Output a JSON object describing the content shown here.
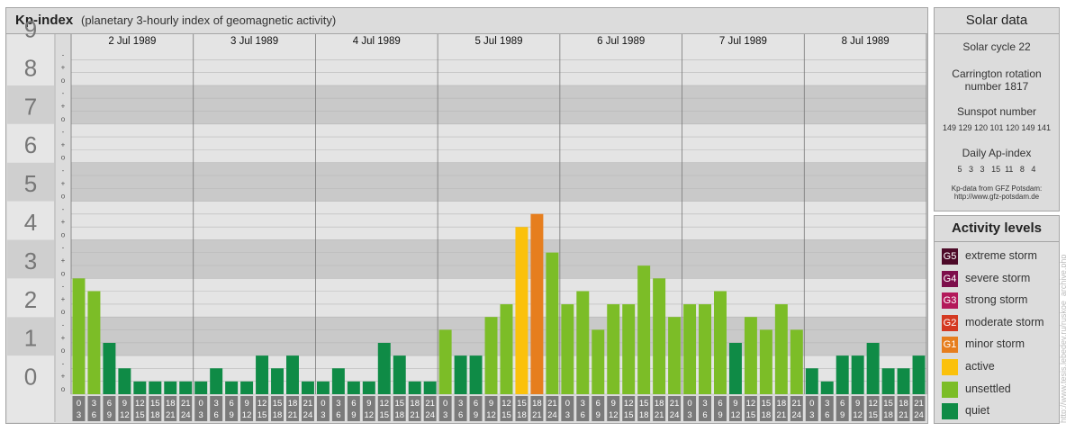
{
  "header": {
    "title": "Kp-index",
    "subtitle": "(planetary 3-hourly index of geomagnetic activity)"
  },
  "chart_data": {
    "type": "bar",
    "title": "Kp-index",
    "subtitle": "(planetary 3-hourly index of geomagnetic activity)",
    "ylim": [
      0,
      9
    ],
    "y_ticks": [
      "0",
      "1",
      "2",
      "3",
      "4",
      "5",
      "6",
      "7",
      "8",
      "9"
    ],
    "y_minor_ticks": [
      "o",
      "+",
      "-"
    ],
    "days": [
      "2 Jul 1989",
      "3 Jul 1989",
      "4 Jul 1989",
      "5 Jul 1989",
      "6 Jul 1989",
      "7 Jul 1989",
      "8 Jul 1989"
    ],
    "hour_start_labels": [
      "0",
      "3",
      "6",
      "9",
      "12",
      "15",
      "18",
      "21"
    ],
    "hour_end_labels": [
      "3",
      "6",
      "9",
      "12",
      "15",
      "18",
      "21",
      "24"
    ],
    "values": [
      [
        3.0,
        2.67,
        1.33,
        0.67,
        0.33,
        0.33,
        0.33,
        0.33
      ],
      [
        0.33,
        0.67,
        0.33,
        0.33,
        1.0,
        0.67,
        1.0,
        0.33
      ],
      [
        0.33,
        0.67,
        0.33,
        0.33,
        1.33,
        1.0,
        0.33,
        0.33
      ],
      [
        1.67,
        1.0,
        1.0,
        2.0,
        2.33,
        4.33,
        4.67,
        3.67
      ],
      [
        2.33,
        2.67,
        1.67,
        2.33,
        2.33,
        3.33,
        3.0,
        2.0
      ],
      [
        2.33,
        2.33,
        2.67,
        1.33,
        2.0,
        1.67,
        2.33,
        1.67
      ],
      [
        0.67,
        0.33,
        1.0,
        1.0,
        1.33,
        0.67,
        0.67,
        1.0
      ]
    ],
    "colors": {
      "quiet": "#0f8b46",
      "unsettled": "#7cbd27",
      "active": "#fbc10b",
      "minor": "#e67e1e",
      "moderate": "#d43a22",
      "strong": "#b3195a",
      "severe": "#7d0e4b",
      "extreme": "#4d0a28"
    },
    "grid": true
  },
  "solar": {
    "title": "Solar data",
    "cycle": "Solar cycle 22",
    "carrington_line1": "Carrington rotation",
    "carrington_line2": "number 1817",
    "sunspot_label": "Sunspot number",
    "sunspot_values": "149 129 120 101 120 149 141",
    "ap_label": "Daily Ap-index",
    "ap_values": "5   3   3   15  11   8   4",
    "source_line1": "Kp-data from GFZ Potsdam:",
    "source_line2": "http://www.gfz-potsdam.de"
  },
  "levels": {
    "title": "Activity levels",
    "items": [
      {
        "code": "G5",
        "label": "extreme storm",
        "color": "#4d0a28"
      },
      {
        "code": "G4",
        "label": "severe storm",
        "color": "#7d0e4b"
      },
      {
        "code": "G3",
        "label": "strong storm",
        "color": "#b3195a"
      },
      {
        "code": "G2",
        "label": "moderate storm",
        "color": "#d43a22"
      },
      {
        "code": "G1",
        "label": "minor storm",
        "color": "#e67e1e"
      },
      {
        "code": "",
        "label": "active",
        "color": "#fbc10b"
      },
      {
        "code": "",
        "label": "unsettled",
        "color": "#7cbd27"
      },
      {
        "code": "",
        "label": "quiet",
        "color": "#0f8b46"
      }
    ]
  },
  "credit": "http://www.tesis.lebedev.ru/ruskoe_archive.php"
}
